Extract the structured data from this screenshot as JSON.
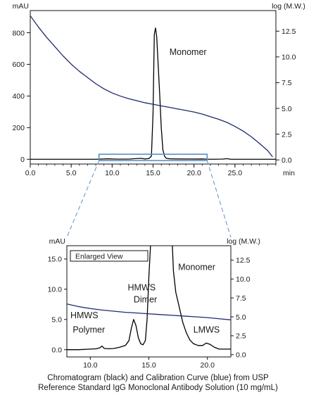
{
  "chart_data": [
    {
      "type": "line",
      "panel": "main",
      "left_unit": "mAU",
      "right_unit": "log (M.W.)",
      "x_unit": "min",
      "xlim": [
        0,
        30
      ],
      "ylim_left": [
        -30,
        940
      ],
      "ylim_right": [
        -0.4,
        14.5
      ],
      "x_ticks": [
        "0.0",
        "5.0",
        "10.0",
        "15.0",
        "20.0",
        "25.0"
      ],
      "y_ticks_left": [
        "0",
        "200",
        "400",
        "600",
        "800"
      ],
      "y_ticks_right": [
        "0.0",
        "2.5",
        "5.0",
        "7.5",
        "10.0",
        "12.5"
      ],
      "annotations": [
        {
          "text": "Monomer",
          "x": 17.0,
          "y": 660
        }
      ],
      "zoom_box": {
        "x": [
          8.4,
          21.6
        ],
        "y": [
          -8,
          32
        ]
      },
      "series": [
        {
          "color": "#000000",
          "axis": "left",
          "points": [
            [
              0,
              0
            ],
            [
              8,
              0
            ],
            [
              9.5,
              3
            ],
            [
              10.5,
              1
            ],
            [
              12,
              1
            ],
            [
              13.5,
              6
            ],
            [
              14,
              2
            ],
            [
              14.5,
              5
            ],
            [
              14.8,
              20
            ],
            [
              15.0,
              300
            ],
            [
              15.15,
              790
            ],
            [
              15.3,
              830
            ],
            [
              15.45,
              770
            ],
            [
              15.6,
              620
            ],
            [
              15.8,
              420
            ],
            [
              16.0,
              200
            ],
            [
              16.2,
              60
            ],
            [
              16.4,
              20
            ],
            [
              16.6,
              6
            ],
            [
              17,
              3
            ],
            [
              18,
              2
            ],
            [
              20,
              1.5
            ],
            [
              21,
              2
            ],
            [
              22,
              0
            ],
            [
              23.5,
              1
            ],
            [
              24,
              4
            ],
            [
              24.5,
              0
            ],
            [
              30,
              0
            ]
          ]
        },
        {
          "color": "#1e2a6e",
          "axis": "right",
          "points": [
            [
              0,
              14.0
            ],
            [
              1,
              12.9
            ],
            [
              2,
              11.9
            ],
            [
              3,
              11.0
            ],
            [
              4,
              10.1
            ],
            [
              5,
              9.3
            ],
            [
              6,
              8.6
            ],
            [
              7,
              8.0
            ],
            [
              8,
              7.4
            ],
            [
              9,
              6.9
            ],
            [
              10,
              6.5
            ],
            [
              11,
              6.2
            ],
            [
              12,
              5.95
            ],
            [
              13,
              5.75
            ],
            [
              14,
              5.55
            ],
            [
              15,
              5.4
            ],
            [
              16,
              5.25
            ],
            [
              17,
              5.1
            ],
            [
              18,
              4.95
            ],
            [
              19,
              4.8
            ],
            [
              20,
              4.65
            ],
            [
              21,
              4.45
            ],
            [
              22,
              4.2
            ],
            [
              23,
              3.95
            ],
            [
              24,
              3.65
            ],
            [
              25,
              3.25
            ],
            [
              26,
              2.8
            ],
            [
              27,
              2.25
            ],
            [
              28,
              1.6
            ],
            [
              29,
              0.9
            ],
            [
              29.6,
              0.3
            ]
          ]
        }
      ]
    },
    {
      "type": "line",
      "panel": "enlarged",
      "left_unit": "mAU",
      "right_unit": "log (M.W.)",
      "xlim": [
        8,
        22
      ],
      "ylim_left": [
        -1.2,
        17.2
      ],
      "ylim_right": [
        -0.3,
        14.4
      ],
      "x_ticks": [
        "10.0",
        "15.0",
        "20.0"
      ],
      "y_ticks_left": [
        "0.0",
        "5.0",
        "10.0",
        "15.0"
      ],
      "y_ticks_right": [
        "0.0",
        "2.5",
        "5.0",
        "7.5",
        "10.0",
        "12.5"
      ],
      "legend_box": "Enlarged View",
      "annotations": [
        {
          "text": "Monomer",
          "x": 17.5,
          "y": 13.2
        },
        {
          "text": "HMWS",
          "x": 13.2,
          "y": 9.8
        },
        {
          "text": "Dimer",
          "x": 13.7,
          "y": 7.8
        },
        {
          "text": "HMWS",
          "x": 8.3,
          "y": 5.2
        },
        {
          "text": "Polymer",
          "x": 8.5,
          "y": 2.8
        },
        {
          "text": "LMWS",
          "x": 18.8,
          "y": 2.8
        }
      ],
      "series": [
        {
          "color": "#000000",
          "axis": "left",
          "points": [
            [
              8,
              0.0
            ],
            [
              9,
              0.0
            ],
            [
              10,
              0.1
            ],
            [
              10.5,
              0.15
            ],
            [
              10.8,
              0.3
            ],
            [
              11,
              0.6
            ],
            [
              11.2,
              0.2
            ],
            [
              11.6,
              0.15
            ],
            [
              12,
              0.2
            ],
            [
              12.5,
              0.4
            ],
            [
              13,
              0.7
            ],
            [
              13.3,
              1.5
            ],
            [
              13.5,
              3.5
            ],
            [
              13.7,
              5.0
            ],
            [
              13.9,
              4.0
            ],
            [
              14.1,
              2.0
            ],
            [
              14.3,
              1.0
            ],
            [
              14.5,
              0.8
            ],
            [
              14.7,
              1.5
            ],
            [
              14.85,
              5.0
            ],
            [
              15.0,
              12.0
            ],
            [
              15.15,
              17.5
            ],
            [
              17.0,
              17.5
            ],
            [
              17.1,
              13.0
            ],
            [
              17.3,
              9.5
            ],
            [
              17.6,
              7.0
            ],
            [
              17.9,
              4.5
            ],
            [
              18.2,
              2.8
            ],
            [
              18.5,
              1.6
            ],
            [
              18.8,
              1.0
            ],
            [
              19.2,
              0.7
            ],
            [
              19.6,
              0.7
            ],
            [
              19.9,
              1.1
            ],
            [
              20.2,
              0.9
            ],
            [
              20.6,
              0.4
            ],
            [
              21,
              0.1
            ],
            [
              21.5,
              0.1
            ],
            [
              22,
              0.1
            ]
          ]
        },
        {
          "color": "#1e2a6e",
          "axis": "right",
          "points": [
            [
              8,
              6.7
            ],
            [
              9,
              6.35
            ],
            [
              10,
              6.1
            ],
            [
              11,
              5.9
            ],
            [
              12,
              5.75
            ],
            [
              13,
              5.6
            ],
            [
              14,
              5.5
            ],
            [
              15,
              5.4
            ],
            [
              16,
              5.3
            ],
            [
              17,
              5.2
            ],
            [
              18,
              5.1
            ],
            [
              19,
              5.0
            ],
            [
              20,
              4.9
            ],
            [
              21,
              4.75
            ],
            [
              22,
              4.6
            ]
          ]
        }
      ]
    }
  ],
  "caption": {
    "line1": "Chromatogram (black) and Calibration Curve (blue) from USP",
    "line2": "Reference Standard IgG Monoclonal Antibody Solution (10 mg/mL)"
  }
}
